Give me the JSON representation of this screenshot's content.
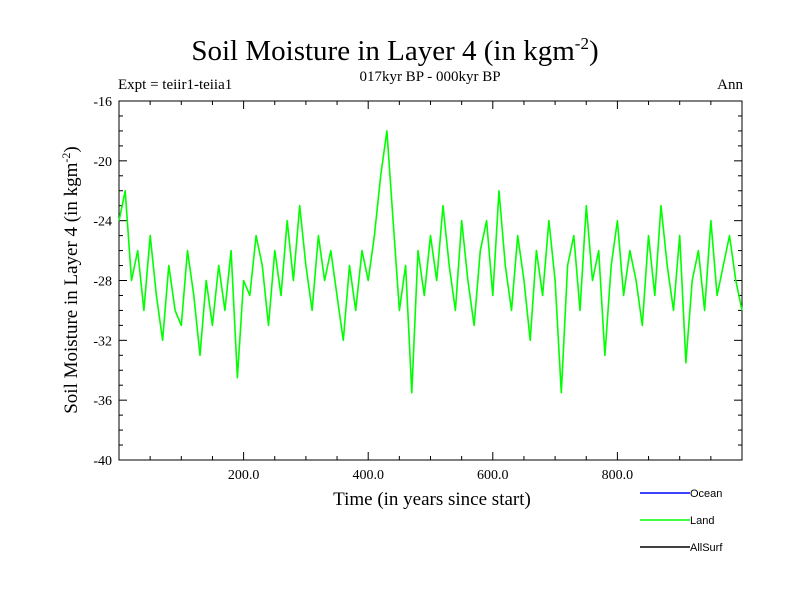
{
  "chart_data": {
    "type": "line",
    "title": "Soil Moisture in Layer 4 (in kgm",
    "title_exponent": "-2",
    "title_close": ")",
    "subtitle": "017kyr BP - 000kyr BP",
    "left_note": "Expt = teiir1-teiia1",
    "right_note": "Ann",
    "xlabel": "Time (in years since start)",
    "ylabel": "Soil Moisture in Layer 4 (in kgm",
    "ylabel_exponent": "-2",
    "ylabel_close": ")",
    "xlim": [
      0,
      1000
    ],
    "ylim": [
      -40,
      -16
    ],
    "x_ticks": [
      200,
      400,
      600,
      800
    ],
    "x_tick_labels": [
      "200.0",
      "400.0",
      "600.0",
      "800.0"
    ],
    "y_ticks": [
      -40,
      -36,
      -32,
      -28,
      -24,
      -20,
      -16
    ],
    "y_tick_labels": [
      "-40",
      "-36",
      "-32",
      "-28",
      "-24",
      "-20",
      "-16"
    ],
    "grid": false,
    "legend_position": "bottom-right",
    "series": [
      {
        "name": "Ocean",
        "color": "#0000ff",
        "x": [],
        "y": []
      },
      {
        "name": "Land",
        "color": "#00ff00",
        "x": [
          0,
          10,
          20,
          30,
          40,
          50,
          60,
          70,
          80,
          90,
          100,
          110,
          120,
          130,
          140,
          150,
          160,
          170,
          180,
          190,
          200,
          210,
          220,
          230,
          240,
          250,
          260,
          270,
          280,
          290,
          300,
          310,
          320,
          330,
          340,
          350,
          360,
          370,
          380,
          390,
          400,
          410,
          420,
          430,
          440,
          450,
          460,
          470,
          480,
          490,
          500,
          510,
          520,
          530,
          540,
          550,
          560,
          570,
          580,
          590,
          600,
          610,
          620,
          630,
          640,
          650,
          660,
          670,
          680,
          690,
          700,
          710,
          720,
          730,
          740,
          750,
          760,
          770,
          780,
          790,
          800,
          810,
          820,
          830,
          840,
          850,
          860,
          870,
          880,
          890,
          900,
          910,
          920,
          930,
          940,
          950,
          960,
          970,
          980,
          990,
          1000
        ],
        "y": [
          -24,
          -22,
          -28,
          -26,
          -30,
          -25,
          -29,
          -32,
          -27,
          -30,
          -31,
          -26,
          -29,
          -33,
          -28,
          -31,
          -27,
          -30,
          -26,
          -34.5,
          -28,
          -29,
          -25,
          -27,
          -31,
          -26,
          -29,
          -24,
          -28,
          -23,
          -27,
          -30,
          -25,
          -28,
          -26,
          -29,
          -32,
          -27,
          -30,
          -26,
          -28,
          -25,
          -21,
          -18,
          -24,
          -30,
          -27,
          -35.5,
          -26,
          -29,
          -25,
          -28,
          -23,
          -27,
          -30,
          -24,
          -28,
          -31,
          -26,
          -24,
          -29,
          -22,
          -27,
          -30,
          -25,
          -28,
          -32,
          -26,
          -29,
          -24,
          -28,
          -35.5,
          -27,
          -25,
          -30,
          -23,
          -28,
          -26,
          -33,
          -27,
          -24,
          -29,
          -26,
          -28,
          -31,
          -25,
          -29,
          -23,
          -27,
          -30,
          -25,
          -33.5,
          -28,
          -26,
          -30,
          -24,
          -29,
          -27,
          -25,
          -28,
          -30
        ]
      },
      {
        "name": "AllSurf",
        "color": "#000000",
        "x": [],
        "y": []
      }
    ]
  }
}
